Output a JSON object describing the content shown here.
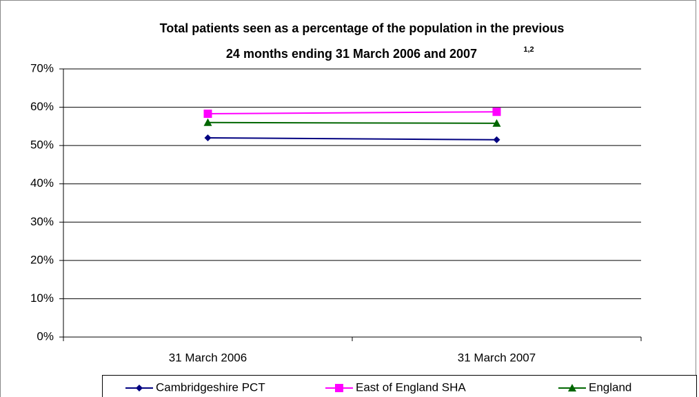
{
  "chart_data": {
    "type": "line",
    "title": "Total patients seen as a percentage of the population in the previous",
    "subtitle": "24 months ending 31 March 2006 and 2007",
    "title_superscript": "1,2",
    "categories": [
      "31 March 2006",
      "31 March 2007"
    ],
    "series": [
      {
        "name": "Cambridgeshire PCT",
        "color": "#000080",
        "marker": "diamond",
        "values": [
          52.0,
          51.5
        ]
      },
      {
        "name": "East of England SHA",
        "color": "#ff00ff",
        "marker": "square",
        "values": [
          58.3,
          58.8
        ]
      },
      {
        "name": "England",
        "color": "#006600",
        "marker": "triangle",
        "values": [
          56.0,
          55.8
        ]
      }
    ],
    "ylim": [
      0,
      70
    ],
    "yticks": [
      {
        "value": 0,
        "label": "0%"
      },
      {
        "value": 10,
        "label": "10%"
      },
      {
        "value": 20,
        "label": "20%"
      },
      {
        "value": 30,
        "label": "30%"
      },
      {
        "value": 40,
        "label": "40%"
      },
      {
        "value": 50,
        "label": "50%"
      },
      {
        "value": 60,
        "label": "60%"
      },
      {
        "value": 70,
        "label": "70%"
      }
    ],
    "grid": true,
    "legend": "bottom"
  }
}
